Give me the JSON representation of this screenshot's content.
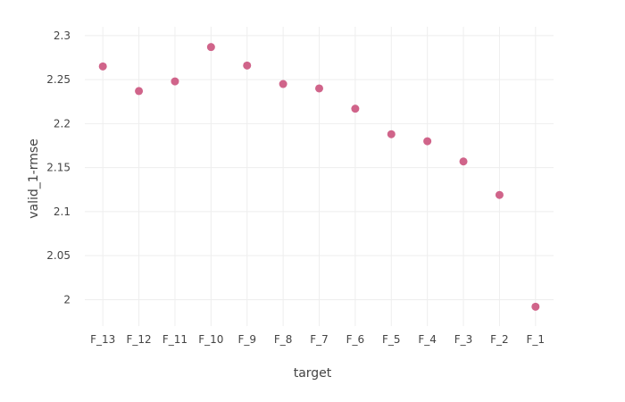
{
  "chart_data": {
    "type": "scatter",
    "xlabel": "target",
    "ylabel": "valid_1-rmse",
    "categories": [
      "F_13",
      "F_12",
      "F_11",
      "F_10",
      "F_9",
      "F_8",
      "F_7",
      "F_6",
      "F_5",
      "F_4",
      "F_3",
      "F_2",
      "F_1"
    ],
    "values": [
      2.265,
      2.237,
      2.248,
      2.287,
      2.266,
      2.245,
      2.24,
      2.217,
      2.188,
      2.18,
      2.157,
      2.119,
      1.992
    ],
    "ylim": [
      1.97,
      2.31
    ],
    "yticks": [
      2,
      2.05,
      2.1,
      2.15,
      2.2,
      2.25,
      2.3
    ],
    "ytick_labels": [
      "2",
      "2.05",
      "2.1",
      "2.15",
      "2.2",
      "2.25",
      "2.3"
    ],
    "grid": true,
    "marker_color": "#d0648a",
    "grid_color": "#eeeeee"
  }
}
